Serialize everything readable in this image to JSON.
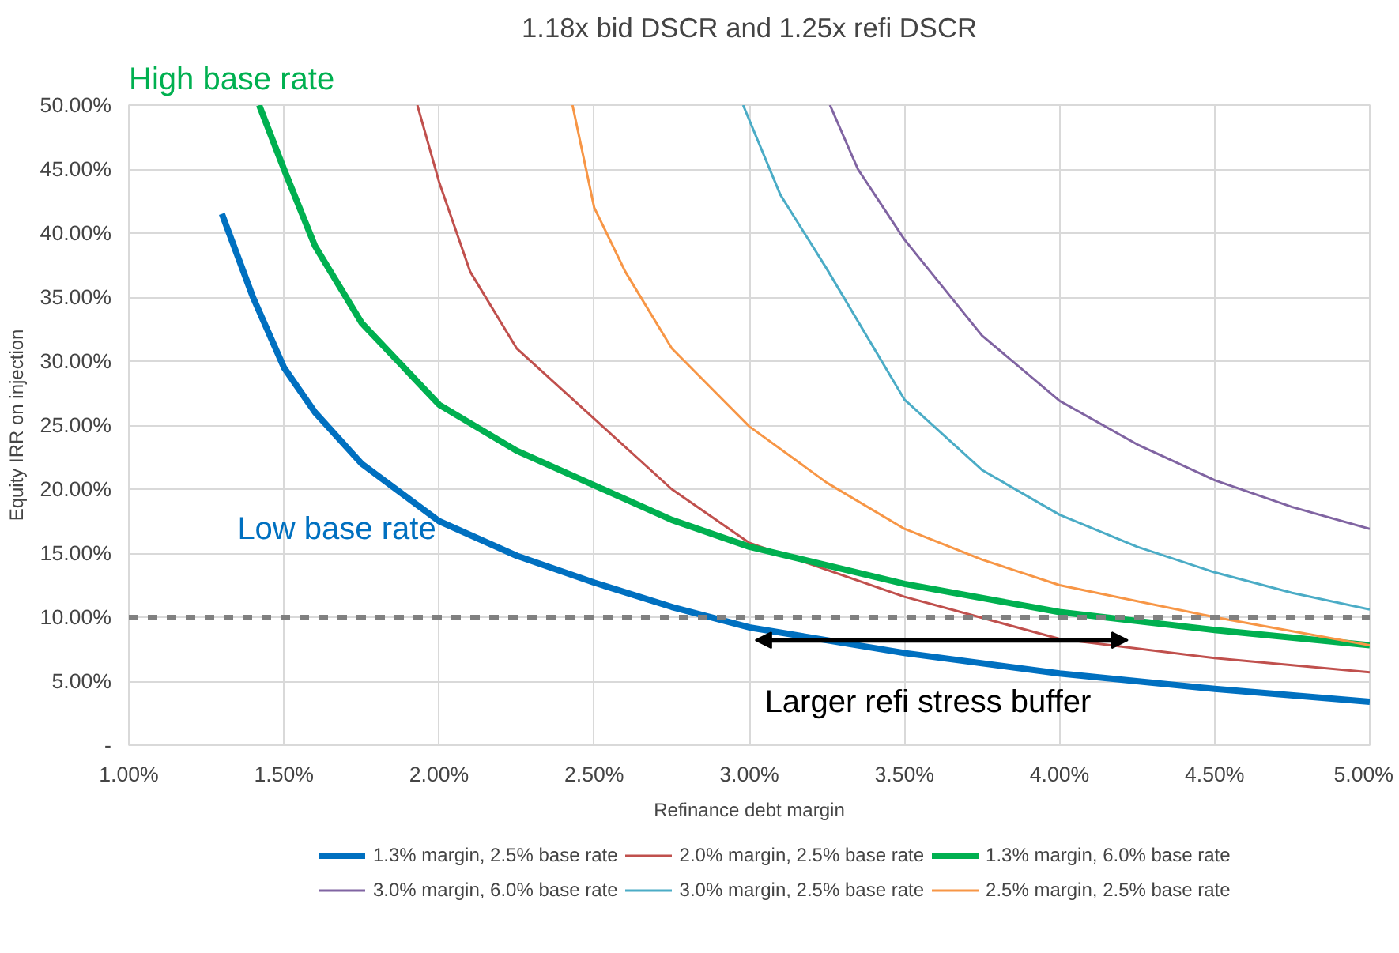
{
  "chart_data": {
    "type": "line",
    "title": "1.18x bid DSCR and 1.25x refi DSCR",
    "xlabel": "Refinance debt margin",
    "ylabel": "Equity IRR on injection",
    "xlim": [
      1.0,
      5.0
    ],
    "ylim": [
      0,
      50
    ],
    "xticks": [
      {
        "value": 1.0,
        "label": "1.00%"
      },
      {
        "value": 1.5,
        "label": "1.50%"
      },
      {
        "value": 2.0,
        "label": "2.00%"
      },
      {
        "value": 2.5,
        "label": "2.50%"
      },
      {
        "value": 3.0,
        "label": "3.00%"
      },
      {
        "value": 3.5,
        "label": "3.50%"
      },
      {
        "value": 4.0,
        "label": "4.00%"
      },
      {
        "value": 4.5,
        "label": "4.50%"
      },
      {
        "value": 5.0,
        "label": "5.00%"
      }
    ],
    "yticks": [
      {
        "value": 0,
        "label": "-"
      },
      {
        "value": 5,
        "label": "5.00%"
      },
      {
        "value": 10,
        "label": "10.00%"
      },
      {
        "value": 15,
        "label": "15.00%"
      },
      {
        "value": 20,
        "label": "20.00%"
      },
      {
        "value": 25,
        "label": "25.00%"
      },
      {
        "value": 30,
        "label": "30.00%"
      },
      {
        "value": 35,
        "label": "35.00%"
      },
      {
        "value": 40,
        "label": "40.00%"
      },
      {
        "value": 45,
        "label": "45.00%"
      },
      {
        "value": 50,
        "label": "50.00%"
      }
    ],
    "grid": true,
    "legend": "bottom",
    "marker": "none",
    "line_style": "solid",
    "series": [
      {
        "name": "1.3% margin, 2.5% base rate",
        "color": "#0070c0",
        "x": [
          1.3,
          1.4,
          1.5,
          1.6,
          1.75,
          2.0,
          2.25,
          2.5,
          2.75,
          3.0,
          3.5,
          4.0,
          4.5,
          5.0
        ],
        "values": [
          41.5,
          35,
          29.5,
          26,
          22,
          17.5,
          14.8,
          12.7,
          10.8,
          9.2,
          7.2,
          5.6,
          4.4,
          3.4
        ]
      },
      {
        "name": "2.0% margin, 2.5% base rate",
        "color": "#c0504d",
        "x": [
          1.93,
          2.0,
          2.1,
          2.25,
          2.5,
          2.75,
          3.0,
          3.5,
          4.0,
          4.5,
          5.0
        ],
        "values": [
          50,
          44,
          37,
          31,
          25.5,
          20,
          15.8,
          11.6,
          8.3,
          6.8,
          5.7
        ]
      },
      {
        "name": "1.3% margin, 6.0% base rate",
        "color": "#00b050",
        "x": [
          1.42,
          1.5,
          1.6,
          1.75,
          2.0,
          2.25,
          2.5,
          2.75,
          3.0,
          3.5,
          4.0,
          4.5,
          5.0
        ],
        "values": [
          50,
          45,
          39,
          33,
          26.6,
          23,
          20.3,
          17.6,
          15.5,
          12.6,
          10.4,
          9.0,
          7.8
        ]
      },
      {
        "name": "3.0% margin, 6.0% base rate",
        "color": "#8064a2",
        "x": [
          3.26,
          3.35,
          3.5,
          3.75,
          4.0,
          4.25,
          4.5,
          4.75,
          5.0
        ],
        "values": [
          50,
          45,
          39.5,
          32,
          26.9,
          23.5,
          20.7,
          18.6,
          16.9
        ]
      },
      {
        "name": "3.0% margin, 2.5% base rate",
        "color": "#4bacc6",
        "x": [
          2.98,
          3.1,
          3.25,
          3.5,
          3.75,
          4.0,
          4.25,
          4.5,
          4.75,
          5.0
        ],
        "values": [
          50,
          43,
          37.2,
          27,
          21.5,
          18.0,
          15.5,
          13.5,
          11.9,
          10.6
        ]
      },
      {
        "name": "2.5% margin, 2.5% base rate",
        "color": "#f79646",
        "x": [
          2.43,
          2.5,
          2.6,
          2.75,
          3.0,
          3.25,
          3.5,
          3.75,
          4.0,
          4.5,
          5.0
        ],
        "values": [
          50,
          42,
          37,
          31,
          24.9,
          20.5,
          16.9,
          14.5,
          12.5,
          10.0,
          7.8
        ]
      }
    ],
    "ref_lines": [
      {
        "axis": "y",
        "value": 10,
        "color": "#808080",
        "line_style": "dashed"
      }
    ],
    "annotations": [
      "High base rate",
      "Low base rate",
      "Larger refi stress buffer"
    ]
  }
}
